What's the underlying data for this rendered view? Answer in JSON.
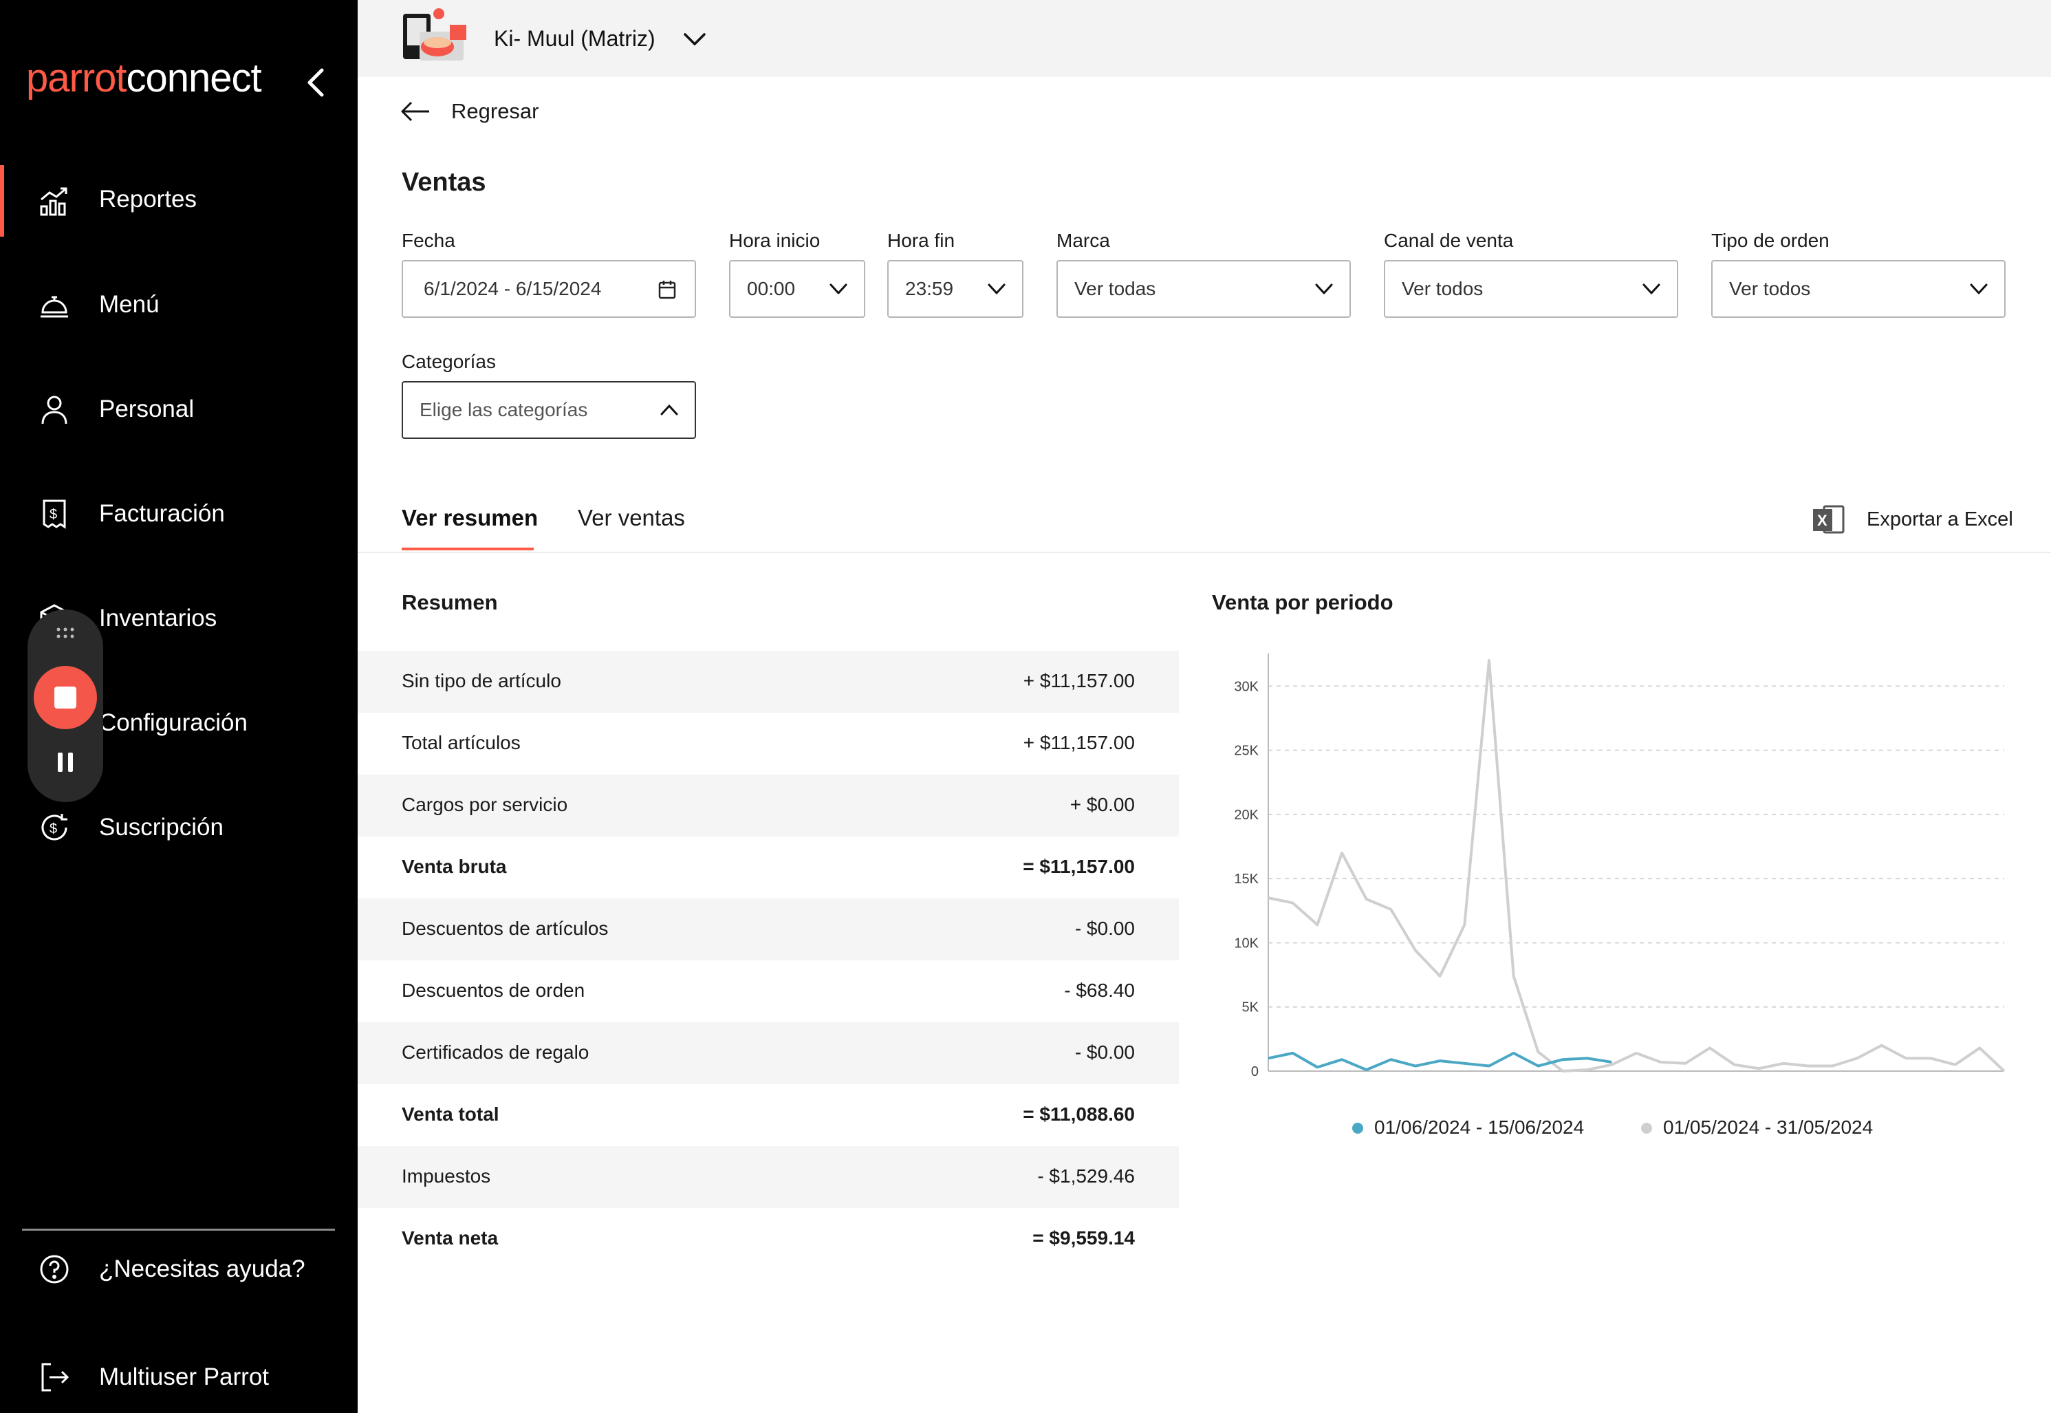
{
  "sidebar": {
    "logo": {
      "part1": "parrot",
      "part2": "connect"
    },
    "items": [
      {
        "label": "Reportes",
        "icon": "chart-bars-icon",
        "active": true
      },
      {
        "label": "Menú",
        "icon": "cloche-icon"
      },
      {
        "label": "Personal",
        "icon": "user-icon"
      },
      {
        "label": "Facturación",
        "icon": "invoice-icon"
      },
      {
        "label": "Inventarios",
        "icon": "box-icon"
      },
      {
        "label": "Configuración",
        "icon": "gear-icon"
      },
      {
        "label": "Suscripción",
        "icon": "subscription-icon"
      }
    ],
    "help": "¿Necesitas ayuda?",
    "user": "Multiuser Parrot"
  },
  "topbar": {
    "store_name": "Ki- Muul (Matriz)"
  },
  "nav": {
    "back_label": "Regresar"
  },
  "page": {
    "title": "Ventas"
  },
  "filters": {
    "fecha": {
      "label": "Fecha",
      "value": "6/1/2024 - 6/15/2024"
    },
    "hora_inicio": {
      "label": "Hora inicio",
      "value": "00:00"
    },
    "hora_fin": {
      "label": "Hora fin",
      "value": "23:59"
    },
    "marca": {
      "label": "Marca",
      "value": "Ver todas"
    },
    "canal": {
      "label": "Canal de venta",
      "value": "Ver todos"
    },
    "tipo_orden": {
      "label": "Tipo de orden",
      "value": "Ver todos"
    },
    "categorias": {
      "label": "Categorías",
      "placeholder": "Elige las categorías"
    }
  },
  "tabs": [
    {
      "label": "Ver resumen",
      "active": true
    },
    {
      "label": "Ver ventas",
      "active": false
    }
  ],
  "export_label": "Exportar a Excel",
  "summary": {
    "title": "Resumen",
    "rows": [
      {
        "label": "Sin tipo de artículo",
        "value": "+ $11,157.00",
        "bold": false
      },
      {
        "label": "Total artículos",
        "value": "+ $11,157.00",
        "bold": false
      },
      {
        "label": "Cargos por servicio",
        "value": "+ $0.00",
        "bold": false
      },
      {
        "label": "Venta bruta",
        "value": "= $11,157.00",
        "bold": true
      },
      {
        "label": "Descuentos de artículos",
        "value": "- $0.00",
        "bold": false
      },
      {
        "label": "Descuentos de orden",
        "value": "- $68.40",
        "bold": false
      },
      {
        "label": "Certificados de regalo",
        "value": "- $0.00",
        "bold": false
      },
      {
        "label": "Venta total",
        "value": "= $11,088.60",
        "bold": true
      },
      {
        "label": "Impuestos",
        "value": "- $1,529.46",
        "bold": false
      },
      {
        "label": "Venta neta",
        "value": "= $9,559.14",
        "bold": true
      }
    ]
  },
  "chart_title": "Venta por periodo",
  "chart_data": {
    "type": "line",
    "title": "",
    "xlabel": "",
    "ylabel": "",
    "ylim": [
      0,
      32000
    ],
    "yticks": [
      "0",
      "5K",
      "10K",
      "15K",
      "20K",
      "25K",
      "30K"
    ],
    "ytick_values": [
      0,
      5000,
      10000,
      15000,
      20000,
      25000,
      30000
    ],
    "grid": true,
    "legend_position": "bottom",
    "series": [
      {
        "name": "01/06/2024 - 15/06/2024",
        "color": "#4aa8c4",
        "x": [
          1,
          2,
          3,
          4,
          5,
          6,
          7,
          8,
          9,
          10,
          11,
          12,
          13,
          14,
          15
        ],
        "values": [
          1000,
          1400,
          300,
          900,
          100,
          900,
          400,
          800,
          600,
          400,
          1400,
          400,
          900,
          1000,
          700
        ]
      },
      {
        "name": "01/05/2024 - 31/05/2024",
        "color": "#cfcfcf",
        "x": [
          1,
          2,
          3,
          4,
          5,
          6,
          7,
          8,
          9,
          10,
          11,
          12,
          13,
          14,
          15,
          16,
          17,
          18,
          19,
          20,
          21,
          22,
          23,
          24,
          25,
          26,
          27,
          28,
          29,
          30,
          31
        ],
        "values": [
          13500,
          13100,
          11400,
          17000,
          13400,
          12600,
          9400,
          7400,
          11400,
          32000,
          7400,
          1500,
          0,
          100,
          500,
          1400,
          700,
          600,
          1800,
          500,
          200,
          600,
          400,
          400,
          1000,
          2000,
          1000,
          1000,
          500,
          1800,
          0
        ]
      }
    ]
  }
}
